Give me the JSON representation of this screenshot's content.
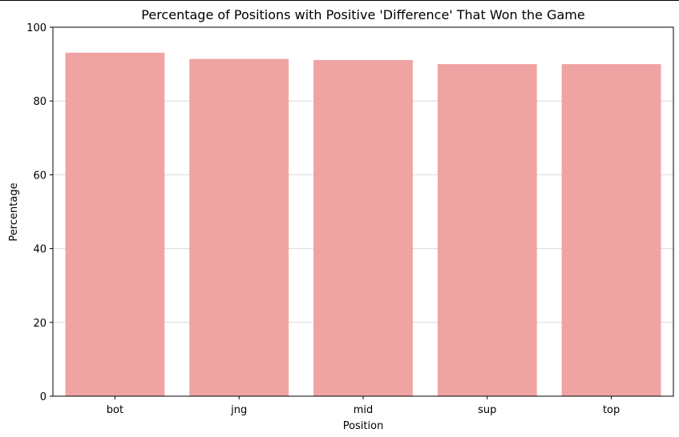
{
  "chart_data": {
    "type": "bar",
    "title": "Percentage of Positions with Positive 'Difference' That Won the Game",
    "xlabel": "Position",
    "ylabel": "Percentage",
    "categories": [
      "bot",
      "jng",
      "mid",
      "sup",
      "top"
    ],
    "values": [
      93.1,
      91.4,
      91.1,
      90.0,
      90.0
    ],
    "ylim": [
      0,
      100
    ],
    "yticks": [
      "0",
      "20",
      "40",
      "60",
      "80",
      "100"
    ],
    "grid": "horizontal",
    "bar_color": "#f0a3a3",
    "grid_color": "#d9d9d9"
  }
}
